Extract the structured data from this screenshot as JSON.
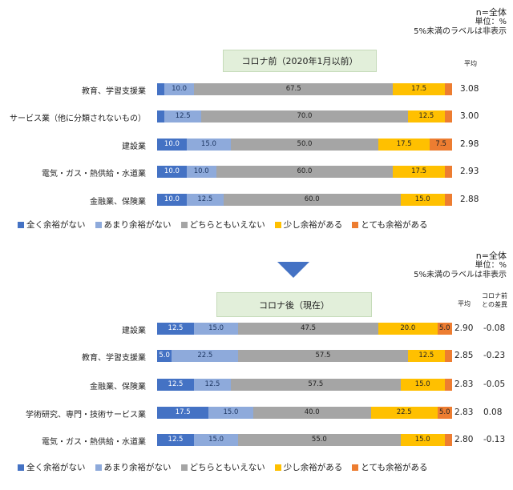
{
  "colors": [
    "#4472c4",
    "#8eaadb",
    "#a5a5a5",
    "#ffc000",
    "#ed7d31"
  ],
  "label_text_colors": [
    "#ffffff",
    "#1f3864",
    "#222222",
    "#222222",
    "#222222"
  ],
  "legend": [
    "全く余裕がない",
    "あまり余裕がない",
    "どちらともいえない",
    "少し余裕がある",
    "とても余裕がある"
  ],
  "chart_data": [
    {
      "type": "bar",
      "stacked": true,
      "orientation": "horizontal",
      "title": "コロナ前（2020年1月以前）",
      "notes": [
        "n=全体",
        "単位：%",
        "5%未満のラベルは非表示"
      ],
      "avg_header": "平均",
      "xlim": [
        0,
        100
      ],
      "categories": [
        "教育、学習支援業",
        "サービス業（他に分類されないもの）",
        "建設業",
        "電気・ガス・熱供給・水道業",
        "金融業、保険業"
      ],
      "series": [
        {
          "name": "全く余裕がない",
          "values": [
            2.5,
            2.5,
            10.0,
            10.0,
            10.0
          ],
          "labels": [
            "",
            "",
            "10.0",
            "10.0",
            "10.0"
          ]
        },
        {
          "name": "あまり余裕がない",
          "values": [
            10.0,
            12.5,
            15.0,
            10.0,
            12.5
          ],
          "labels": [
            "10.0",
            "12.5",
            "15.0",
            "10.0",
            "12.5"
          ]
        },
        {
          "name": "どちらともいえない",
          "values": [
            67.5,
            70.0,
            50.0,
            60.0,
            60.0
          ],
          "labels": [
            "67.5",
            "70.0",
            "50.0",
            "60.0",
            "60.0"
          ]
        },
        {
          "name": "少し余裕がある",
          "values": [
            17.5,
            12.5,
            17.5,
            17.5,
            15.0
          ],
          "labels": [
            "17.5",
            "12.5",
            "17.5",
            "17.5",
            "15.0"
          ]
        },
        {
          "name": "とても余裕がある",
          "values": [
            2.5,
            2.5,
            7.5,
            2.5,
            2.5
          ],
          "labels": [
            "",
            "",
            "7.5",
            "",
            ""
          ]
        }
      ],
      "averages": [
        "3.08",
        "3.00",
        "2.98",
        "2.93",
        "2.88"
      ]
    },
    {
      "type": "bar",
      "stacked": true,
      "orientation": "horizontal",
      "title": "コロナ後（現在）",
      "notes": [
        "n=全体",
        "単位：%",
        "5%未満のラベルは非表示"
      ],
      "avg_header": "平均",
      "diff_header": [
        "コロナ前",
        "との差異"
      ],
      "xlim": [
        0,
        100
      ],
      "categories": [
        "建設業",
        "教育、学習支援業",
        "金融業、保険業",
        "学術研究、専門・技術サービス業",
        "電気・ガス・熱供給・水道業"
      ],
      "series": [
        {
          "name": "全く余裕がない",
          "values": [
            12.5,
            5.0,
            12.5,
            17.5,
            12.5
          ],
          "labels": [
            "12.5",
            "5.0",
            "12.5",
            "17.5",
            "12.5"
          ]
        },
        {
          "name": "あまり余裕がない",
          "values": [
            15.0,
            22.5,
            12.5,
            15.0,
            15.0
          ],
          "labels": [
            "15.0",
            "22.5",
            "12.5",
            "15.0",
            "15.0"
          ]
        },
        {
          "name": "どちらともいえない",
          "values": [
            47.5,
            57.5,
            57.5,
            40.0,
            55.0
          ],
          "labels": [
            "47.5",
            "57.5",
            "57.5",
            "40.0",
            "55.0"
          ]
        },
        {
          "name": "少し余裕がある",
          "values": [
            20.0,
            12.5,
            15.0,
            22.5,
            15.0
          ],
          "labels": [
            "20.0",
            "12.5",
            "15.0",
            "22.5",
            "15.0"
          ]
        },
        {
          "name": "とても余裕がある",
          "values": [
            5.0,
            2.5,
            2.5,
            5.0,
            2.5
          ],
          "labels": [
            "5.0",
            "",
            "",
            "5.0",
            ""
          ]
        }
      ],
      "averages": [
        "2.90",
        "2.85",
        "2.83",
        "2.83",
        "2.80"
      ],
      "diffs": [
        "-0.08",
        "-0.23",
        "-0.05",
        "0.08",
        "-0.13"
      ]
    }
  ]
}
